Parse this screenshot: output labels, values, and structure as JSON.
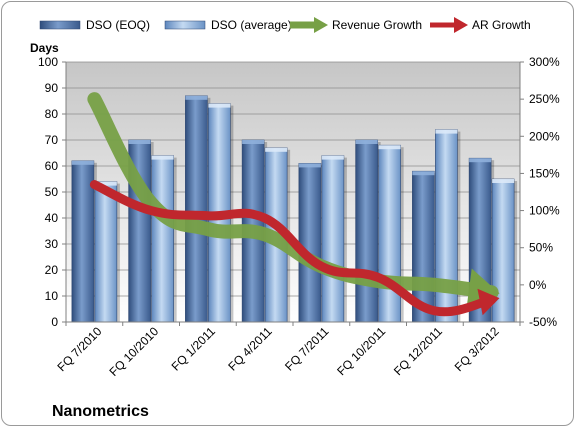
{
  "chart_data": {
    "type": "bar",
    "categories": [
      "FQ 7/2010",
      "FQ 10/2010",
      "FQ 1/2011",
      "FQ 4/2011",
      "FQ 7/2011",
      "FQ 10/2011",
      "FQ 12/2011",
      "FQ 3/2012"
    ],
    "series": [
      {
        "name": "DSO (EOQ)",
        "values": [
          62,
          70,
          87,
          70,
          61,
          70,
          58,
          63
        ],
        "color": "#5b7eb0",
        "type": "bar"
      },
      {
        "name": "DSO (average)",
        "values": [
          54,
          64,
          84,
          67,
          64,
          68,
          74,
          55
        ],
        "color": "#8db3e2",
        "type": "bar"
      },
      {
        "name": "Revenue Growth",
        "values": [
          250,
          110,
          75,
          68,
          25,
          5,
          0,
          -10
        ],
        "color": "#77a046",
        "type": "line",
        "axis": "right"
      },
      {
        "name": "AR Growth",
        "values": [
          135,
          100,
          93,
          90,
          25,
          10,
          -35,
          -20
        ],
        "color": "#c0272d",
        "type": "line",
        "axis": "right"
      }
    ],
    "ylabel": "Days",
    "ylim": [
      0,
      100
    ],
    "yticks": [
      "0",
      "10",
      "20",
      "30",
      "40",
      "50",
      "60",
      "70",
      "80",
      "90",
      "100"
    ],
    "y2lim": [
      -50,
      300
    ],
    "y2ticks": [
      "-50%",
      "0%",
      "50%",
      "100%",
      "150%",
      "200%",
      "250%",
      "300%"
    ],
    "grid": true,
    "legend_position": "top"
  },
  "company": "Nanometrics"
}
